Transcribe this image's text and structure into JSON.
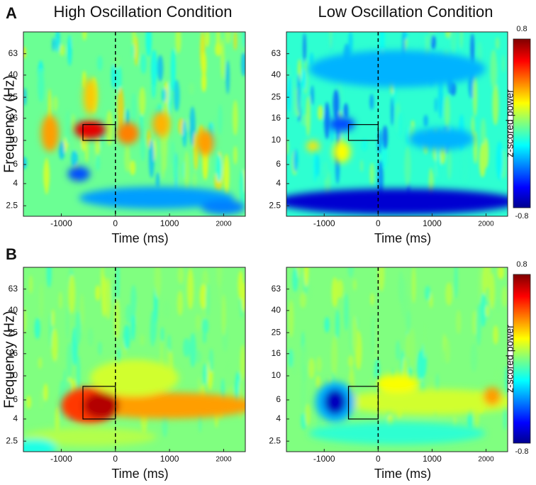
{
  "panel_labels": [
    "A",
    "B"
  ],
  "chart_data": [
    {
      "type": "heatmap",
      "title": "High Oscillation Condition",
      "xlabel": "Time (ms)",
      "ylabel": "Frequency (Hz)",
      "xlim": [
        -1700,
        2400
      ],
      "xticks": [
        -1000,
        0,
        1000,
        2000
      ],
      "ylim": [
        2,
        100
      ],
      "yticks": [
        2.5,
        4,
        6,
        10,
        16,
        25,
        40,
        63
      ],
      "log_y": true,
      "event_line": 0,
      "highlight": {
        "x": [
          -600,
          0
        ],
        "y": [
          10,
          14
        ]
      }
    },
    {
      "type": "heatmap",
      "title": "Low Oscillation Condition",
      "xlabel": "Time (ms)",
      "xlim": [
        -1700,
        2400
      ],
      "xticks": [
        -1000,
        0,
        1000,
        2000
      ],
      "ylim": [
        2,
        100
      ],
      "yticks": [
        2.5,
        4,
        6,
        10,
        16,
        25,
        40,
        63
      ],
      "log_y": true,
      "event_line": 0,
      "highlight": {
        "x": [
          -550,
          0
        ],
        "y": [
          10,
          14
        ]
      },
      "colorbar": {
        "label": "z-scored power",
        "clim": [
          -0.8,
          0.8
        ],
        "ticks": [
          -0.8,
          0.8
        ]
      }
    },
    {
      "type": "heatmap",
      "xlabel": "Time (ms)",
      "ylabel": "Frequency (Hz)",
      "xlim": [
        -1700,
        2400
      ],
      "xticks": [
        -1000,
        0,
        1000,
        2000
      ],
      "ylim": [
        2,
        100
      ],
      "yticks": [
        2.5,
        4,
        6,
        10,
        16,
        25,
        40,
        63
      ],
      "log_y": true,
      "event_line": 0,
      "highlight": {
        "x": [
          -600,
          0
        ],
        "y": [
          4,
          8
        ]
      }
    },
    {
      "type": "heatmap",
      "xlabel": "Time (ms)",
      "xlim": [
        -1700,
        2400
      ],
      "xticks": [
        -1000,
        0,
        1000,
        2000
      ],
      "ylim": [
        2,
        100
      ],
      "yticks": [
        2.5,
        4,
        6,
        10,
        16,
        25,
        40,
        63
      ],
      "log_y": true,
      "event_line": 0,
      "highlight": {
        "x": [
          -550,
          0
        ],
        "y": [
          4,
          8
        ]
      },
      "colorbar": {
        "label": "z-scored power",
        "clim": [
          -0.8,
          0.8
        ],
        "ticks": [
          -0.8,
          0.8
        ]
      }
    }
  ]
}
